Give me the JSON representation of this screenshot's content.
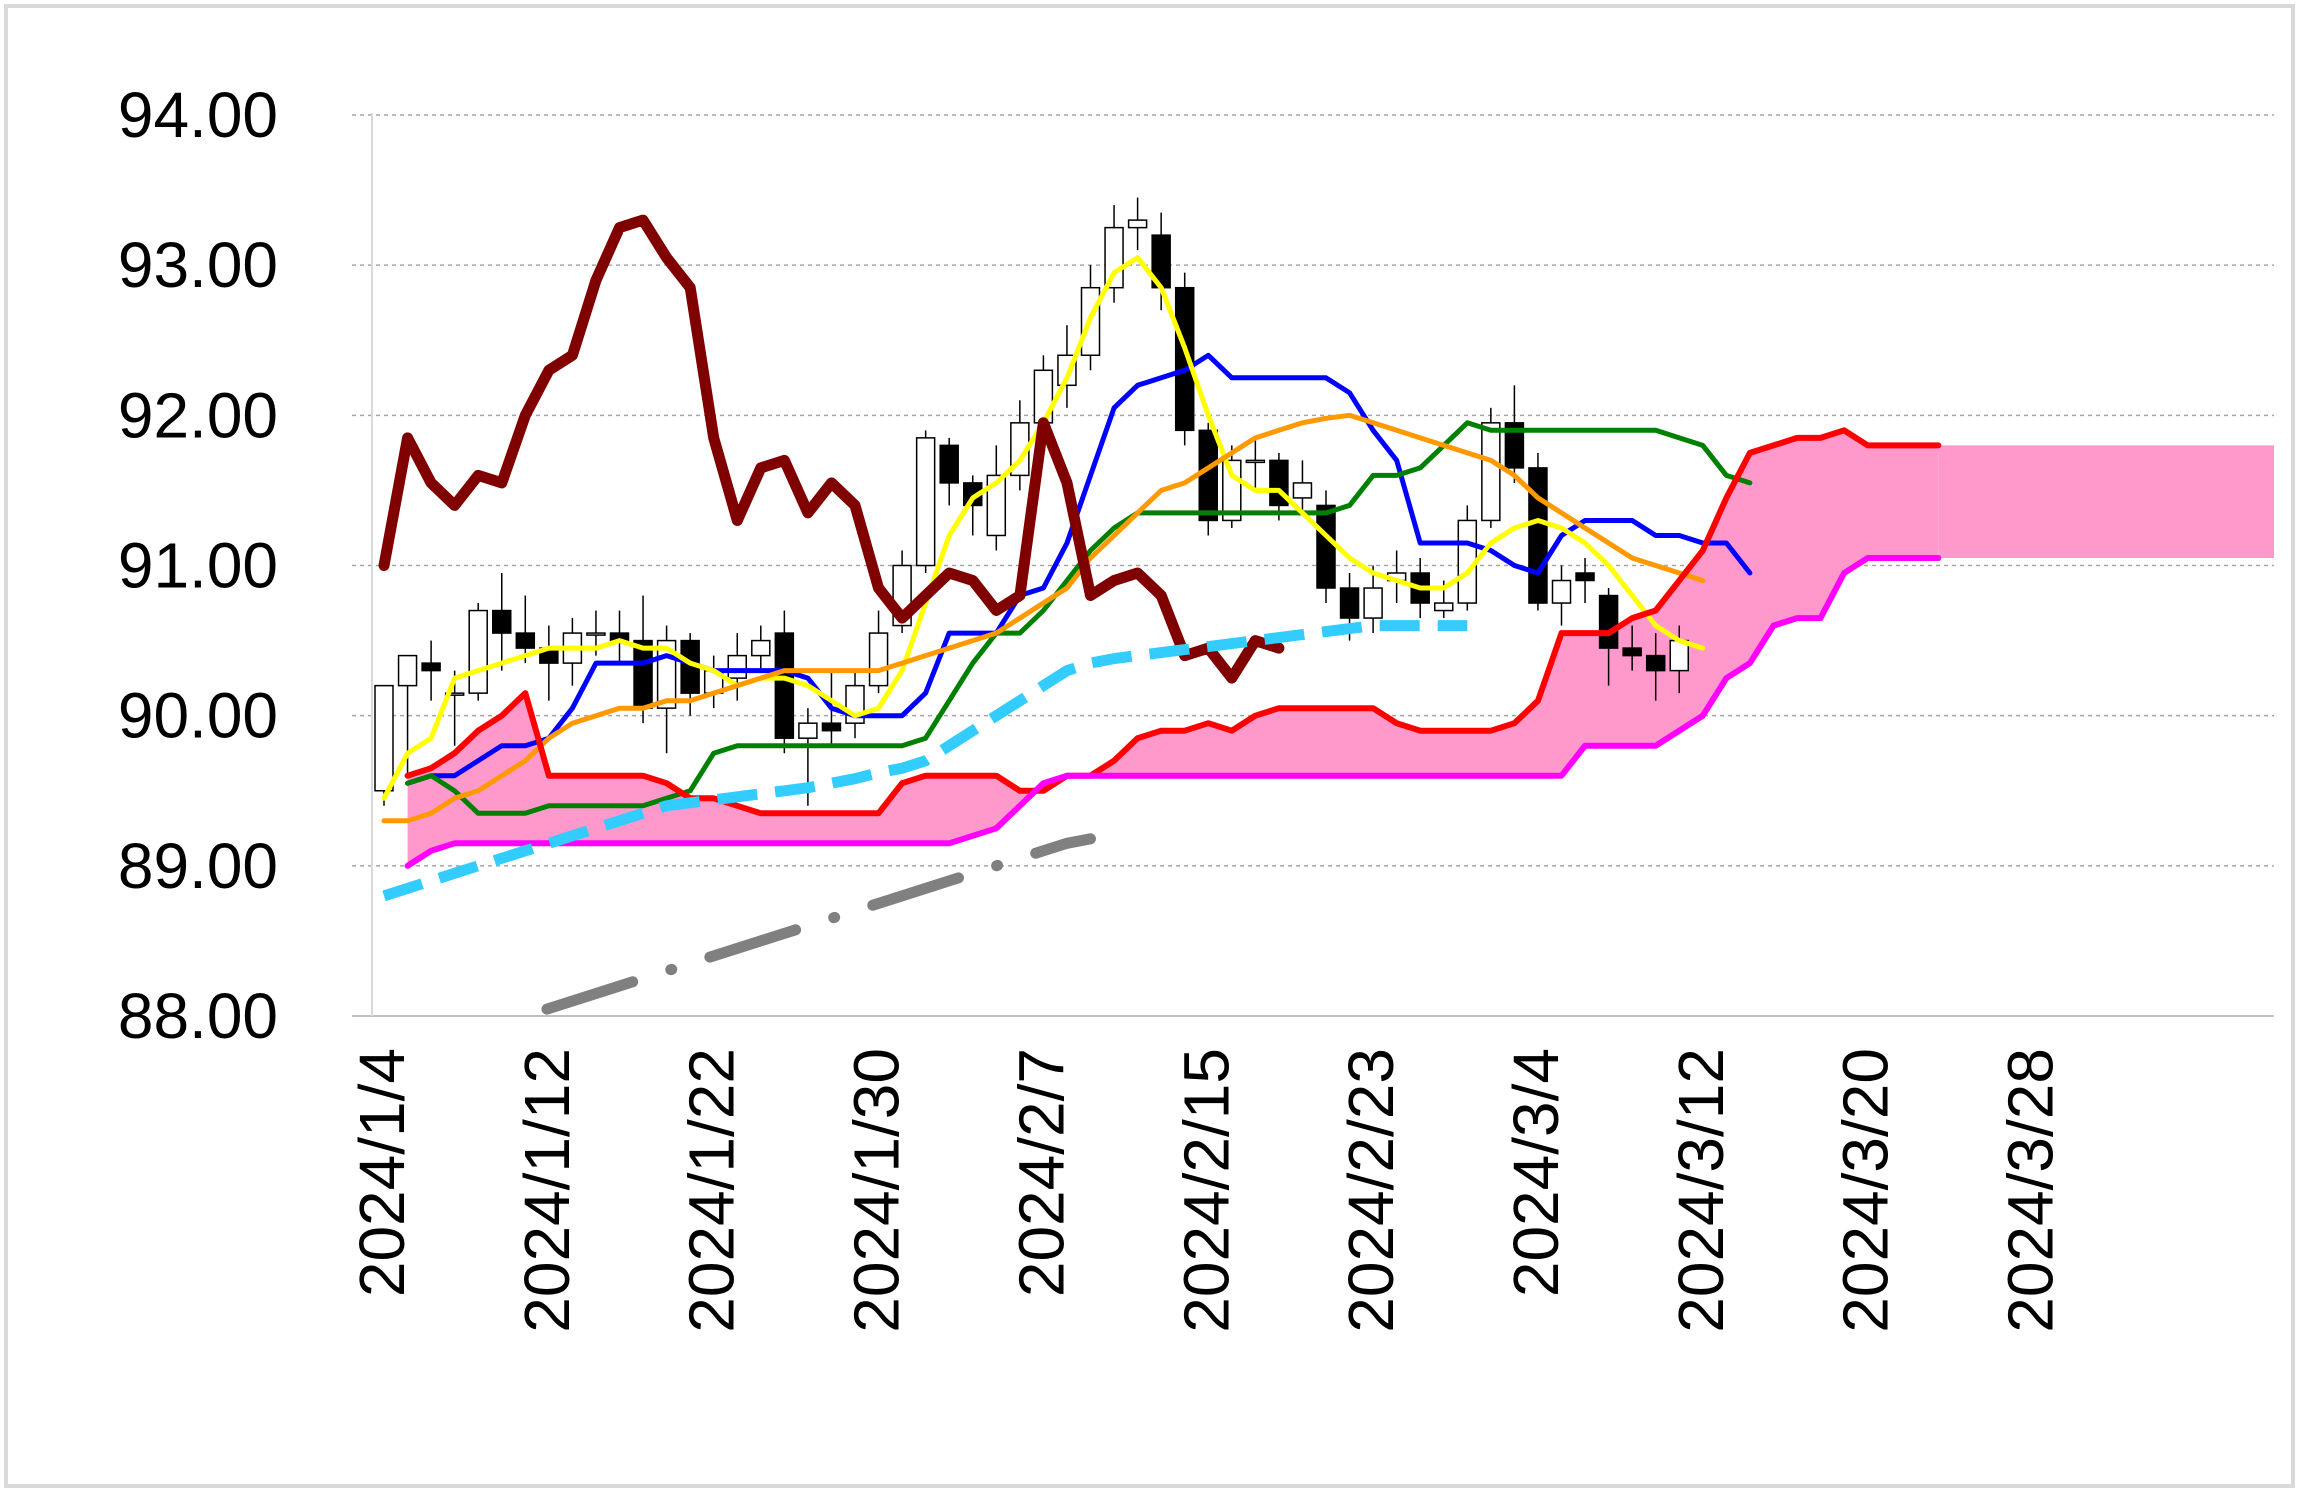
{
  "chart_data": {
    "type": "line",
    "title": "",
    "xlabel": "",
    "ylabel": "",
    "ylim": [
      88,
      94
    ],
    "y_ticks": [
      "94.00",
      "93.00",
      "92.00",
      "91.00",
      "90.00",
      "89.00",
      "88.00"
    ],
    "x_tick_labels": [
      "2024/1/4",
      "2024/1/12",
      "2024/1/22",
      "2024/1/30",
      "2024/2/7",
      "2024/2/15",
      "2024/2/23",
      "2024/3/4",
      "2024/3/12",
      "2024/3/20",
      "2024/3/28"
    ],
    "grid": "horizontal-dashed",
    "legend": "none",
    "kumo_fill": "#ff99cc",
    "candles": [
      [
        89.5,
        90.2,
        90.2,
        89.4
      ],
      [
        90.2,
        90.4,
        90.25,
        89.6
      ],
      [
        90.35,
        90.3,
        90.5,
        90.1
      ],
      [
        90.15,
        90.15,
        90.3,
        89.8
      ],
      [
        90.15,
        90.7,
        90.75,
        90.1
      ],
      [
        90.7,
        90.55,
        90.95,
        90.3
      ],
      [
        90.55,
        90.45,
        90.8,
        90.35
      ],
      [
        90.45,
        90.35,
        90.6,
        90.1
      ],
      [
        90.35,
        90.55,
        90.65,
        90.2
      ],
      [
        90.55,
        90.55,
        90.7,
        90.4
      ],
      [
        90.55,
        90.5,
        90.7,
        90.35
      ],
      [
        90.5,
        90.05,
        90.8,
        89.95
      ],
      [
        90.05,
        90.5,
        90.6,
        89.75
      ],
      [
        90.5,
        90.15,
        90.55,
        90.0
      ],
      [
        90.15,
        90.3,
        90.4,
        90.05
      ],
      [
        90.25,
        90.4,
        90.55,
        90.1
      ],
      [
        90.4,
        90.5,
        90.6,
        90.3
      ],
      [
        90.55,
        89.85,
        90.7,
        89.75
      ],
      [
        89.85,
        89.95,
        90.05,
        89.4
      ],
      [
        89.95,
        89.9,
        90.3,
        89.8
      ],
      [
        89.95,
        90.2,
        90.3,
        89.85
      ],
      [
        90.2,
        90.55,
        90.7,
        90.15
      ],
      [
        90.6,
        91.0,
        91.1,
        90.55
      ],
      [
        91.0,
        91.85,
        91.9,
        90.95
      ],
      [
        91.8,
        91.55,
        91.85,
        91.4
      ],
      [
        91.55,
        91.4,
        91.6,
        91.2
      ],
      [
        91.2,
        91.6,
        91.8,
        91.1
      ],
      [
        91.6,
        91.95,
        92.1,
        91.5
      ],
      [
        91.95,
        92.3,
        92.4,
        91.85
      ],
      [
        92.2,
        92.4,
        92.6,
        92.05
      ],
      [
        92.4,
        92.85,
        93.0,
        92.3
      ],
      [
        92.85,
        93.25,
        93.4,
        92.75
      ],
      [
        93.25,
        93.3,
        93.45,
        93.1
      ],
      [
        93.2,
        92.85,
        93.35,
        92.7
      ],
      [
        92.85,
        91.9,
        92.95,
        91.8
      ],
      [
        91.9,
        91.3,
        91.95,
        91.2
      ],
      [
        91.3,
        91.7,
        91.8,
        91.25
      ],
      [
        91.7,
        91.7,
        91.85,
        91.5
      ],
      [
        91.7,
        91.4,
        91.75,
        91.3
      ],
      [
        91.45,
        91.55,
        91.7,
        91.35
      ],
      [
        91.4,
        90.85,
        91.5,
        90.75
      ],
      [
        90.85,
        90.65,
        90.95,
        90.5
      ],
      [
        90.65,
        90.85,
        91.0,
        90.55
      ],
      [
        90.9,
        90.95,
        91.1,
        90.75
      ],
      [
        90.95,
        90.75,
        91.05,
        90.65
      ],
      [
        90.7,
        90.75,
        90.9,
        90.65
      ],
      [
        90.75,
        91.3,
        91.4,
        90.7
      ],
      [
        91.3,
        91.95,
        92.05,
        91.25
      ],
      [
        91.95,
        91.65,
        92.2,
        91.55
      ],
      [
        91.65,
        90.75,
        91.75,
        90.7
      ],
      [
        90.75,
        90.9,
        91.0,
        90.6
      ],
      [
        90.95,
        90.9,
        91.05,
        90.75
      ],
      [
        90.8,
        90.45,
        90.85,
        90.2
      ],
      [
        90.45,
        90.4,
        90.6,
        90.3
      ],
      [
        90.4,
        90.3,
        90.55,
        90.1
      ],
      [
        90.3,
        90.5,
        90.6,
        90.15
      ]
    ],
    "series": [
      {
        "color": "#0000ff",
        "offset": 1,
        "values": [
          89.55,
          89.6,
          89.6,
          89.7,
          89.8,
          89.8,
          89.85,
          90.05,
          90.35,
          90.35,
          90.35,
          90.4,
          90.35,
          90.3,
          90.3,
          90.3,
          90.3,
          90.25,
          90.05,
          90.0,
          90.0,
          90.0,
          90.15,
          90.55,
          90.55,
          90.55,
          90.8,
          90.85,
          91.15,
          91.6,
          92.05,
          92.2,
          92.25,
          92.3,
          92.4,
          92.25,
          92.25,
          92.25,
          92.25,
          92.25,
          92.15,
          91.9,
          91.7,
          91.15,
          91.15,
          91.15,
          91.1,
          91.0,
          90.95,
          91.2,
          91.3,
          91.3,
          91.3,
          91.2,
          91.2,
          91.15,
          91.15,
          90.95
        ]
      },
      {
        "color": "#008000",
        "offset": 1,
        "values": [
          89.55,
          89.6,
          89.5,
          89.35,
          89.35,
          89.35,
          89.4,
          89.4,
          89.4,
          89.4,
          89.4,
          89.45,
          89.5,
          89.75,
          89.8,
          89.8,
          89.8,
          89.8,
          89.8,
          89.8,
          89.8,
          89.8,
          89.85,
          90.1,
          90.35,
          90.55,
          90.55,
          90.7,
          90.9,
          91.1,
          91.25,
          91.35,
          91.35,
          91.35,
          91.35,
          91.35,
          91.35,
          91.35,
          91.35,
          91.35,
          91.4,
          91.6,
          91.6,
          91.65,
          91.8,
          91.95,
          91.9,
          91.9,
          91.9,
          91.9,
          91.9,
          91.9,
          91.9,
          91.9,
          91.85,
          91.8,
          91.6,
          91.55
        ]
      },
      {
        "color": "#ffff00",
        "offset": 0,
        "values": [
          89.45,
          89.75,
          89.85,
          90.25,
          90.3,
          90.35,
          90.4,
          90.45,
          90.45,
          90.45,
          90.5,
          90.45,
          90.45,
          90.35,
          90.3,
          90.2,
          90.25,
          90.25,
          90.2,
          90.1,
          90.0,
          90.05,
          90.3,
          90.75,
          91.2,
          91.45,
          91.55,
          91.7,
          91.95,
          92.25,
          92.65,
          92.95,
          93.05,
          92.85,
          92.45,
          92.0,
          91.6,
          91.5,
          91.5,
          91.35,
          91.2,
          91.05,
          90.95,
          90.9,
          90.85,
          90.85,
          90.95,
          91.15,
          91.25,
          91.3,
          91.25,
          91.15,
          91.0,
          90.8,
          90.6,
          90.5,
          90.45
        ]
      },
      {
        "color": "#ff9900",
        "offset": 0,
        "values": [
          89.3,
          89.3,
          89.35,
          89.45,
          89.5,
          89.6,
          89.7,
          89.85,
          89.95,
          90.0,
          90.05,
          90.05,
          90.1,
          90.1,
          90.15,
          90.2,
          90.25,
          90.3,
          90.3,
          90.3,
          90.3,
          90.3,
          90.35,
          90.4,
          90.45,
          90.5,
          90.55,
          90.65,
          90.75,
          90.85,
          91.05,
          91.2,
          91.35,
          91.5,
          91.55,
          91.65,
          91.75,
          91.85,
          91.9,
          91.95,
          91.98,
          92.0,
          91.95,
          91.9,
          91.85,
          91.8,
          91.75,
          91.7,
          91.6,
          91.45,
          91.35,
          91.25,
          91.15,
          91.05,
          91.0,
          90.95,
          90.9
        ]
      },
      {
        "color": "#ff0000",
        "offset": 1,
        "values": [
          89.6,
          89.65,
          89.75,
          89.9,
          90.0,
          90.15,
          89.6,
          89.6,
          89.6,
          89.6,
          89.6,
          89.55,
          89.45,
          89.45,
          89.4,
          89.35,
          89.35,
          89.35,
          89.35,
          89.35,
          89.35,
          89.55,
          89.6,
          89.6,
          89.6,
          89.6,
          89.5,
          89.5,
          89.6,
          89.6,
          89.7,
          89.85,
          89.9,
          89.9,
          89.95,
          89.9,
          90.0,
          90.05,
          90.05,
          90.05,
          90.05,
          90.05,
          89.95,
          89.9,
          89.9,
          89.9,
          89.9,
          89.95,
          90.1,
          90.55,
          90.55,
          90.55,
          90.65,
          90.7,
          90.9,
          91.1,
          91.45,
          91.75,
          91.8,
          91.85,
          91.85,
          91.9,
          91.8,
          91.8,
          91.8,
          91.8
        ]
      },
      {
        "color": "#ff00ff",
        "offset": 1,
        "values": [
          89.0,
          89.1,
          89.15,
          89.15,
          89.15,
          89.15,
          89.15,
          89.15,
          89.15,
          89.15,
          89.15,
          89.15,
          89.15,
          89.15,
          89.15,
          89.15,
          89.15,
          89.15,
          89.15,
          89.15,
          89.15,
          89.15,
          89.15,
          89.15,
          89.2,
          89.25,
          89.4,
          89.55,
          89.6,
          89.6,
          89.6,
          89.6,
          89.6,
          89.6,
          89.6,
          89.6,
          89.6,
          89.6,
          89.6,
          89.6,
          89.6,
          89.6,
          89.6,
          89.6,
          89.6,
          89.6,
          89.6,
          89.6,
          89.6,
          89.6,
          89.8,
          89.8,
          89.8,
          89.8,
          89.9,
          90.0,
          90.25,
          90.35,
          90.6,
          90.65,
          90.65,
          90.95,
          91.05,
          91.05,
          91.05,
          91.05
        ]
      },
      {
        "color": "#800000",
        "offset": 0,
        "values": [
          91.0,
          91.85,
          91.55,
          91.4,
          91.6,
          91.55,
          92.0,
          92.3,
          92.4,
          92.9,
          93.25,
          93.3,
          93.05,
          92.85,
          91.85,
          91.3,
          91.65,
          91.7,
          91.35,
          91.55,
          91.4,
          90.85,
          90.65,
          90.8,
          90.95,
          90.9,
          90.7,
          90.8,
          91.95,
          91.55,
          90.8,
          90.9,
          90.95,
          90.8,
          90.4,
          90.45,
          90.25,
          90.5,
          90.45
        ]
      },
      {
        "color": "#33ccff",
        "offset": 0,
        "dash": "dash",
        "values": [
          88.8,
          88.85,
          88.9,
          88.95,
          89.0,
          89.05,
          89.1,
          89.15,
          89.2,
          89.25,
          89.3,
          89.35,
          89.4,
          89.42,
          89.44,
          89.46,
          89.48,
          89.5,
          89.52,
          89.55,
          89.58,
          89.62,
          89.65,
          89.7,
          89.8,
          89.9,
          90.0,
          90.1,
          90.2,
          90.3,
          90.35,
          90.38,
          90.4,
          90.42,
          90.44,
          90.46,
          90.48,
          90.5,
          90.52,
          90.54,
          90.56,
          90.58,
          90.6,
          90.6,
          90.6,
          90.6,
          90.6
        ]
      },
      {
        "color": "#808080",
        "offset": 0,
        "dash": "dashdot",
        "values": [
          87.7,
          87.75,
          87.8,
          87.85,
          87.9,
          87.95,
          88.0,
          88.05,
          88.1,
          88.15,
          88.2,
          88.25,
          88.3,
          88.35,
          88.4,
          88.45,
          88.5,
          88.55,
          88.6,
          88.65,
          88.7,
          88.75,
          88.8,
          88.85,
          88.9,
          88.95,
          89.0,
          89.05,
          89.1,
          89.15,
          89.18
        ]
      }
    ]
  }
}
